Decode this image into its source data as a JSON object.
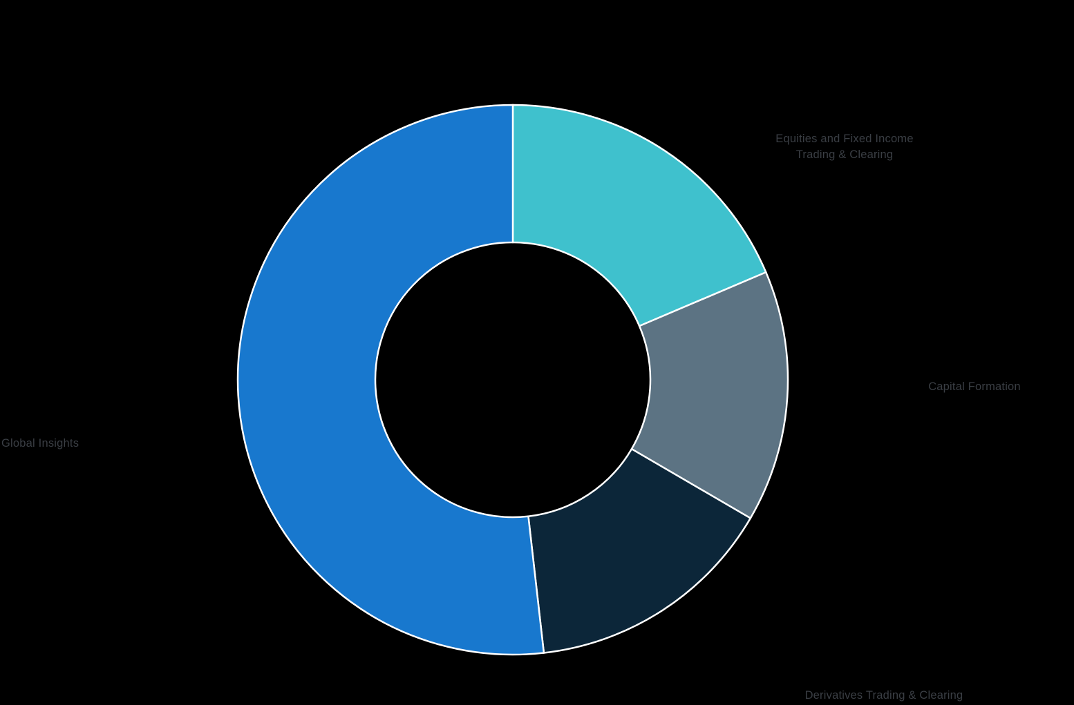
{
  "background_color": "#000000",
  "chart_data": {
    "type": "pie",
    "subtype": "donut",
    "title": "",
    "direction": "clockwise",
    "start_angle_deg": 0,
    "inner_radius_ratio": 0.5,
    "stroke_color": "#FFFFFF",
    "label_color": "#3A3E44",
    "legend_position": "outside-labels",
    "segments": [
      {
        "id": "equities-fixed-income-trading-clearing",
        "label": "Equities and Fixed Income Trading & Clearing",
        "label_wrapped": "Equities and Fixed Income\nTrading & Clearing",
        "value": 18.6,
        "color": "#3FC1CD"
      },
      {
        "id": "capital-formation",
        "label": "Capital Formation",
        "label_wrapped": "Capital Formation",
        "value": 14.8,
        "color": "#5C7383"
      },
      {
        "id": "derivatives-trading-clearing",
        "label": "Derivatives Trading & Clearing",
        "label_wrapped": "Derivatives Trading & Clearing",
        "value": 14.8,
        "color": "#0C2639"
      },
      {
        "id": "global-insights",
        "label": "Global Insights",
        "label_wrapped": "Global Insights",
        "value": 51.8,
        "color": "#1878CE"
      }
    ]
  }
}
